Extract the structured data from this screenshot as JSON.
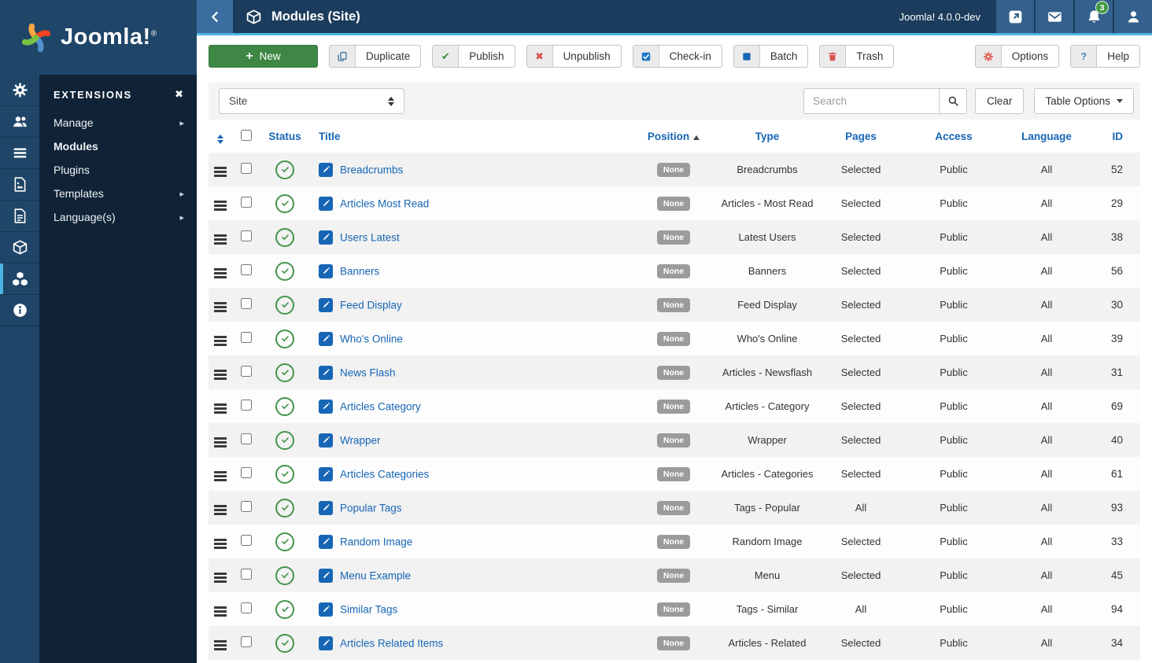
{
  "brand": {
    "name": "Joomla!",
    "reg": "®"
  },
  "colors": {
    "topbar_navy": "#1b3c5c",
    "sidebar_navy": "#102336",
    "rail_blue": "#1f4568",
    "accent_cyan": "#4cb4e2",
    "link_blue": "#1766b5",
    "new_green": "#3e8744",
    "status_green": "#43944b",
    "unpublish_red": "#d9534f",
    "badge_gray": "#9b9b9b",
    "notification_green": "#459b45"
  },
  "topbar": {
    "title": "Modules (Site)",
    "version": "Joomla! 4.0.0-dev",
    "notification_count": "3",
    "icons": [
      "back-chevron",
      "package-cube",
      "external-link",
      "envelope",
      "bell",
      "user"
    ]
  },
  "sidebar": {
    "header": "EXTENSIONS",
    "close_icon": "✖",
    "rail_icons": [
      "gear",
      "users",
      "list",
      "media-image",
      "document",
      "cube",
      "extension-cubes",
      "info"
    ],
    "rail_active": "extension-cubes",
    "items": [
      {
        "key": "manage",
        "label": "Manage",
        "has_submenu": true,
        "active": false
      },
      {
        "key": "modules",
        "label": "Modules",
        "has_submenu": false,
        "active": true
      },
      {
        "key": "plugins",
        "label": "Plugins",
        "has_submenu": false,
        "active": false
      },
      {
        "key": "templates",
        "label": "Templates",
        "has_submenu": true,
        "active": false
      },
      {
        "key": "languages",
        "label": "Language(s)",
        "has_submenu": true,
        "active": false
      }
    ]
  },
  "toolbar": {
    "new_label": "New",
    "buttons": [
      {
        "label": "Duplicate",
        "icon": "copy"
      },
      {
        "label": "Publish",
        "icon": "check-green"
      },
      {
        "label": "Unpublish",
        "icon": "x-red"
      },
      {
        "label": "Check-in",
        "icon": "checkbox-blue"
      },
      {
        "label": "Batch",
        "icon": "square-blue"
      },
      {
        "label": "Trash",
        "icon": "trash-red"
      }
    ],
    "options_label": "Options",
    "help_label": "Help"
  },
  "filterbar": {
    "client_select_value": "Site",
    "search_placeholder": "Search",
    "clear_label": "Clear",
    "table_options_label": "Table Options"
  },
  "table": {
    "sorted_by": "Position",
    "sort_direction": "ascending",
    "headers": {
      "status": "Status",
      "title": "Title",
      "position": "Position",
      "type": "Type",
      "pages": "Pages",
      "access": "Access",
      "language": "Language",
      "id": "ID"
    },
    "rows": [
      {
        "title": "Breadcrumbs",
        "position": "None",
        "type": "Breadcrumbs",
        "pages": "Selected",
        "access": "Public",
        "language": "All",
        "id": 52
      },
      {
        "title": "Articles Most Read",
        "position": "None",
        "type": "Articles - Most Read",
        "pages": "Selected",
        "access": "Public",
        "language": "All",
        "id": 29
      },
      {
        "title": "Users Latest",
        "position": "None",
        "type": "Latest Users",
        "pages": "Selected",
        "access": "Public",
        "language": "All",
        "id": 38
      },
      {
        "title": "Banners",
        "position": "None",
        "type": "Banners",
        "pages": "Selected",
        "access": "Public",
        "language": "All",
        "id": 56
      },
      {
        "title": "Feed Display",
        "position": "None",
        "type": "Feed Display",
        "pages": "Selected",
        "access": "Public",
        "language": "All",
        "id": 30
      },
      {
        "title": "Who's Online",
        "position": "None",
        "type": "Who's Online",
        "pages": "Selected",
        "access": "Public",
        "language": "All",
        "id": 39
      },
      {
        "title": "News Flash",
        "position": "None",
        "type": "Articles - Newsflash",
        "pages": "Selected",
        "access": "Public",
        "language": "All",
        "id": 31
      },
      {
        "title": "Articles Category",
        "position": "None",
        "type": "Articles - Category",
        "pages": "Selected",
        "access": "Public",
        "language": "All",
        "id": 69
      },
      {
        "title": "Wrapper",
        "position": "None",
        "type": "Wrapper",
        "pages": "Selected",
        "access": "Public",
        "language": "All",
        "id": 40
      },
      {
        "title": "Articles Categories",
        "position": "None",
        "type": "Articles - Categories",
        "pages": "Selected",
        "access": "Public",
        "language": "All",
        "id": 61
      },
      {
        "title": "Popular Tags",
        "position": "None",
        "type": "Tags - Popular",
        "pages": "All",
        "access": "Public",
        "language": "All",
        "id": 93
      },
      {
        "title": "Random Image",
        "position": "None",
        "type": "Random Image",
        "pages": "Selected",
        "access": "Public",
        "language": "All",
        "id": 33
      },
      {
        "title": "Menu Example",
        "position": "None",
        "type": "Menu",
        "pages": "Selected",
        "access": "Public",
        "language": "All",
        "id": 45
      },
      {
        "title": "Similar Tags",
        "position": "None",
        "type": "Tags - Similar",
        "pages": "All",
        "access": "Public",
        "language": "All",
        "id": 94
      },
      {
        "title": "Articles Related Items",
        "position": "None",
        "type": "Articles - Related",
        "pages": "Selected",
        "access": "Public",
        "language": "All",
        "id": 34
      }
    ]
  }
}
